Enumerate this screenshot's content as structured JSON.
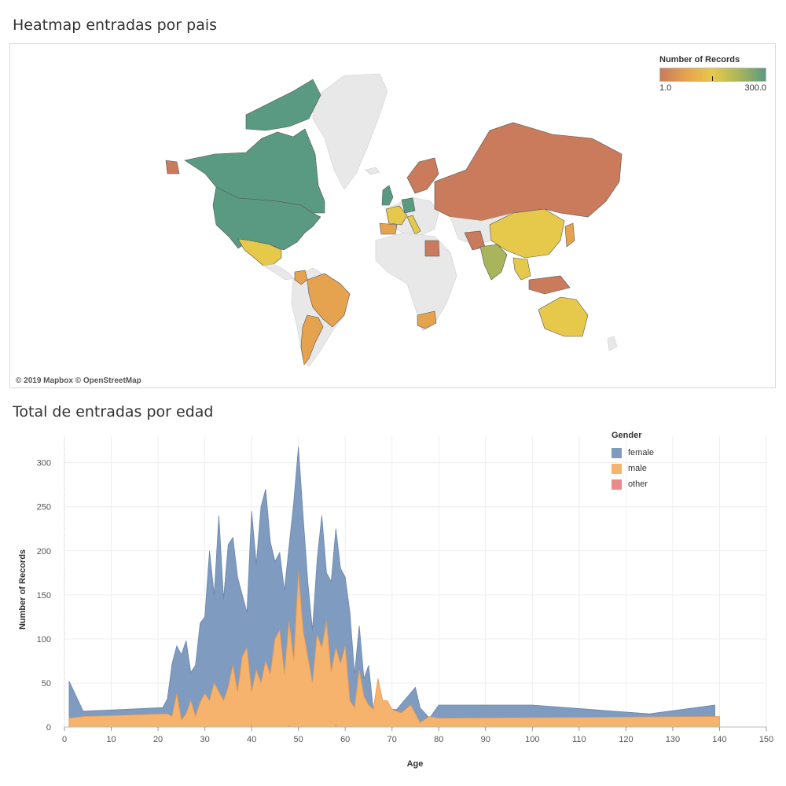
{
  "map": {
    "title": "Heatmap entradas por pais",
    "attribution": "© 2019 Mapbox © OpenStreetMap",
    "legend": {
      "title": "Number of Records",
      "min_label": "1.0",
      "max_label": "300.0",
      "colors": [
        "#c97b5c",
        "#e6a34f",
        "#e6c94a",
        "#a9b55a",
        "#5b9a82"
      ]
    },
    "no_data_color": "#e8e8e8",
    "countries": [
      {
        "name": "Canada",
        "color": "#5b9a82"
      },
      {
        "name": "United States",
        "color": "#5b9a82"
      },
      {
        "name": "Mexico",
        "color": "#e6c94a"
      },
      {
        "name": "Brazil",
        "color": "#e6a34f"
      },
      {
        "name": "Argentina",
        "color": "#e6a34f"
      },
      {
        "name": "Russia",
        "color": "#c97b5c"
      },
      {
        "name": "China",
        "color": "#e6c94a"
      },
      {
        "name": "India",
        "color": "#a9b55a"
      },
      {
        "name": "Australia",
        "color": "#e6c94a"
      },
      {
        "name": "United Kingdom",
        "color": "#5b9a82"
      },
      {
        "name": "Germany",
        "color": "#5b9a82"
      },
      {
        "name": "France",
        "color": "#e6c94a"
      },
      {
        "name": "Spain",
        "color": "#e6a34f"
      },
      {
        "name": "Italy",
        "color": "#e6c94a"
      },
      {
        "name": "South Africa",
        "color": "#e6a34f"
      },
      {
        "name": "Egypt",
        "color": "#c97b5c"
      },
      {
        "name": "Japan",
        "color": "#e6a34f"
      }
    ]
  },
  "area": {
    "title": "Total de entradas por edad",
    "colors": {
      "female": "#7f9bbf",
      "male": "#f5b36e",
      "other": "#e88b8b"
    },
    "legend": {
      "title": "Gender",
      "items": [
        {
          "key": "female",
          "label": "female"
        },
        {
          "key": "male",
          "label": "male"
        },
        {
          "key": "other",
          "label": "other"
        }
      ]
    }
  },
  "chart_data": {
    "type": "area",
    "title": "Total de entradas por edad",
    "xlabel": "Age",
    "ylabel": "Number of Records",
    "xlim": [
      0,
      150
    ],
    "ylim": [
      0,
      330
    ],
    "x_ticks": [
      0,
      10,
      20,
      30,
      40,
      50,
      60,
      70,
      80,
      90,
      100,
      110,
      120,
      130,
      140,
      150
    ],
    "y_ticks": [
      0,
      50,
      100,
      150,
      200,
      250,
      300
    ],
    "grid": true,
    "legend_position": "top-right",
    "series": [
      {
        "name": "female",
        "points": [
          [
            1,
            52
          ],
          [
            4,
            18
          ],
          [
            21,
            22
          ],
          [
            22,
            32
          ],
          [
            23,
            72
          ],
          [
            24,
            92
          ],
          [
            25,
            82
          ],
          [
            26,
            98
          ],
          [
            27,
            62
          ],
          [
            28,
            70
          ],
          [
            29,
            118
          ],
          [
            30,
            125
          ],
          [
            31,
            200
          ],
          [
            32,
            150
          ],
          [
            33,
            240
          ],
          [
            34,
            145
          ],
          [
            35,
            207
          ],
          [
            36,
            215
          ],
          [
            37,
            170
          ],
          [
            38,
            150
          ],
          [
            39,
            130
          ],
          [
            40,
            245
          ],
          [
            41,
            185
          ],
          [
            42,
            250
          ],
          [
            43,
            270
          ],
          [
            44,
            210
          ],
          [
            45,
            188
          ],
          [
            46,
            198
          ],
          [
            47,
            155
          ],
          [
            48,
            205
          ],
          [
            49,
            255
          ],
          [
            50,
            318
          ],
          [
            51,
            240
          ],
          [
            52,
            165
          ],
          [
            53,
            110
          ],
          [
            54,
            190
          ],
          [
            55,
            240
          ],
          [
            56,
            175
          ],
          [
            57,
            165
          ],
          [
            58,
            225
          ],
          [
            59,
            180
          ],
          [
            60,
            170
          ],
          [
            61,
            130
          ],
          [
            62,
            60
          ],
          [
            63,
            115
          ],
          [
            64,
            55
          ],
          [
            65,
            70
          ],
          [
            66,
            20
          ],
          [
            67,
            22
          ],
          [
            70,
            20
          ],
          [
            71,
            20
          ],
          [
            75,
            45
          ],
          [
            76,
            22
          ],
          [
            78,
            10
          ],
          [
            80,
            25
          ],
          [
            100,
            25
          ],
          [
            125,
            15
          ],
          [
            139,
            25
          ]
        ]
      },
      {
        "name": "male",
        "points": [
          [
            1,
            10
          ],
          [
            4,
            12
          ],
          [
            22,
            15
          ],
          [
            23,
            12
          ],
          [
            24,
            38
          ],
          [
            25,
            8
          ],
          [
            26,
            15
          ],
          [
            27,
            30
          ],
          [
            28,
            12
          ],
          [
            29,
            28
          ],
          [
            30,
            38
          ],
          [
            31,
            30
          ],
          [
            32,
            50
          ],
          [
            33,
            40
          ],
          [
            34,
            30
          ],
          [
            35,
            45
          ],
          [
            36,
            70
          ],
          [
            37,
            40
          ],
          [
            38,
            80
          ],
          [
            39,
            90
          ],
          [
            40,
            40
          ],
          [
            41,
            65
          ],
          [
            42,
            50
          ],
          [
            43,
            75
          ],
          [
            44,
            60
          ],
          [
            45,
            100
          ],
          [
            46,
            110
          ],
          [
            47,
            60
          ],
          [
            48,
            120
          ],
          [
            49,
            75
          ],
          [
            50,
            175
          ],
          [
            51,
            110
          ],
          [
            52,
            80
          ],
          [
            53,
            50
          ],
          [
            54,
            105
          ],
          [
            55,
            90
          ],
          [
            56,
            120
          ],
          [
            57,
            62
          ],
          [
            58,
            90
          ],
          [
            59,
            72
          ],
          [
            60,
            92
          ],
          [
            61,
            30
          ],
          [
            62,
            22
          ],
          [
            63,
            65
          ],
          [
            64,
            35
          ],
          [
            65,
            25
          ],
          [
            66,
            20
          ],
          [
            67,
            55
          ],
          [
            68,
            30
          ],
          [
            69,
            30
          ],
          [
            70,
            20
          ],
          [
            71,
            18
          ],
          [
            72,
            16
          ],
          [
            74,
            25
          ],
          [
            76,
            5
          ],
          [
            78,
            12
          ],
          [
            80,
            10
          ],
          [
            140,
            12
          ]
        ]
      },
      {
        "name": "other",
        "points": [
          [
            40,
            3
          ],
          [
            48,
            2
          ],
          [
            58,
            3
          ]
        ]
      }
    ]
  }
}
